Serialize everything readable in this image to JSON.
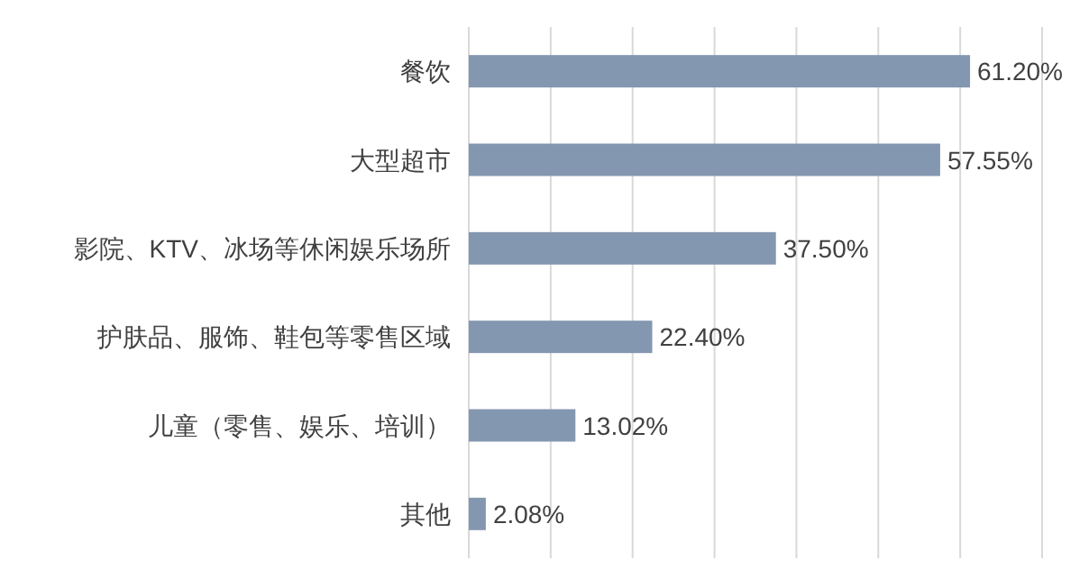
{
  "chart_data": {
    "type": "bar",
    "orientation": "horizontal",
    "categories": [
      "餐饮",
      "大型超市",
      "影院、KTV、冰场等休闲娱乐场所",
      "护肤品、服饰、鞋包等零售区域",
      "儿童（零售、娱乐、培训）",
      "其他"
    ],
    "values": [
      61.2,
      57.55,
      37.5,
      22.4,
      13.02,
      2.08
    ],
    "value_labels": [
      "61.20%",
      "57.55%",
      "37.50%",
      "22.40%",
      "13.02%",
      "2.08%"
    ],
    "color": "#8497b0",
    "xlim": [
      0,
      70
    ],
    "xticks": [
      {
        "value": 0,
        "label": null
      },
      {
        "value": 10,
        "label": null
      },
      {
        "value": 20,
        "label": null
      },
      {
        "value": 30,
        "label": null
      },
      {
        "value": 40,
        "label": null
      },
      {
        "value": 50,
        "label": null
      },
      {
        "value": 60,
        "label": null
      },
      {
        "value": 70,
        "label": null
      }
    ],
    "grid": "x",
    "tick_labels": "y"
  }
}
